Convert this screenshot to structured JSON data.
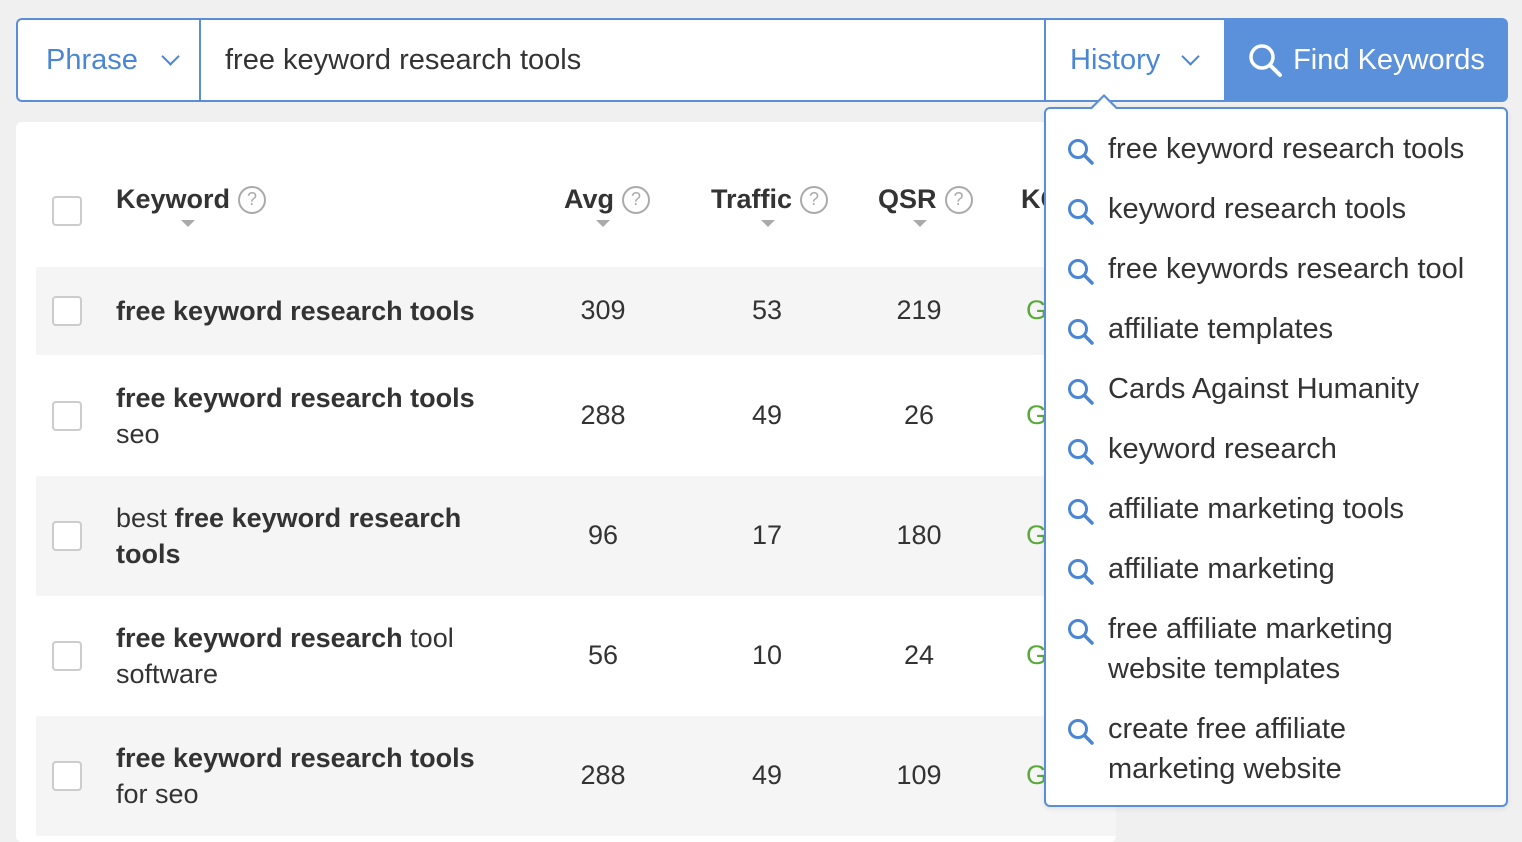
{
  "search": {
    "mode_label": "Phrase",
    "query_value": "free keyword research tools",
    "history_label": "History",
    "find_label": "Find Keywords"
  },
  "table": {
    "columns": [
      {
        "label": "Keyword"
      },
      {
        "label": "Avg"
      },
      {
        "label": "Traffic"
      },
      {
        "label": "QSR"
      },
      {
        "label": "KC"
      }
    ],
    "rows": [
      {
        "line1": [
          {
            "t": "free keyword research tools",
            "b": true
          }
        ],
        "line2": [],
        "avg": "309",
        "traffic": "53",
        "qsr": "219",
        "kc": "G"
      },
      {
        "line1": [
          {
            "t": "free keyword research tools",
            "b": true
          }
        ],
        "line2": [
          {
            "t": "seo",
            "b": false
          }
        ],
        "avg": "288",
        "traffic": "49",
        "qsr": "26",
        "kc": "G"
      },
      {
        "line1": [
          {
            "t": "best ",
            "b": false
          },
          {
            "t": "free keyword research",
            "b": true
          }
        ],
        "line2": [
          {
            "t": "tools",
            "b": true
          }
        ],
        "avg": "96",
        "traffic": "17",
        "qsr": "180",
        "kc": "G"
      },
      {
        "line1": [
          {
            "t": "free keyword research",
            "b": true
          },
          {
            "t": " tool",
            "b": false
          }
        ],
        "line2": [
          {
            "t": "software",
            "b": false
          }
        ],
        "avg": "56",
        "traffic": "10",
        "qsr": "24",
        "kc": "G"
      },
      {
        "line1": [
          {
            "t": "free keyword research tools",
            "b": true
          }
        ],
        "line2": [
          {
            "t": "for seo",
            "b": false
          }
        ],
        "avg": "288",
        "traffic": "49",
        "qsr": "109",
        "kc": "G"
      }
    ]
  },
  "history": {
    "items": [
      [
        "free keyword research tools"
      ],
      [
        "keyword research tools"
      ],
      [
        "free keywords research tool"
      ],
      [
        "affiliate templates"
      ],
      [
        "Cards Against Humanity"
      ],
      [
        "keyword research"
      ],
      [
        "affiliate marketing tools"
      ],
      [
        "affiliate marketing"
      ],
      [
        "free affiliate marketing",
        "website templates"
      ],
      [
        "create free affiliate",
        "marketing website"
      ]
    ]
  },
  "colors": {
    "accent": "#5b91db",
    "link": "#4a86d4",
    "kc_green": "#5aaa3a"
  }
}
